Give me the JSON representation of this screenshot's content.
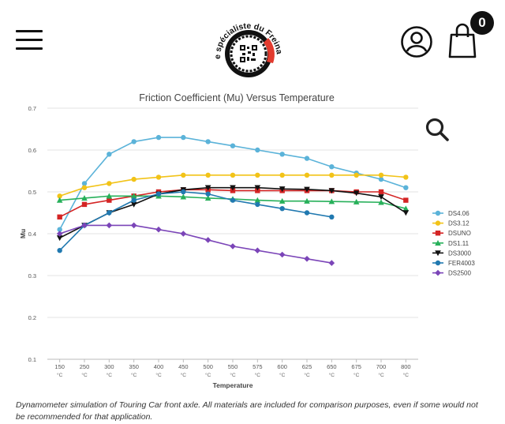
{
  "header": {
    "logo_text": "Le spécialiste du Freinage",
    "cart_count": "0",
    "menu_icon": "hamburger-icon",
    "account_icon": "user-icon",
    "cart_icon": "shopping-bag-icon",
    "zoom_icon": "search-icon"
  },
  "colors": {
    "accent": "#111111",
    "logo_red": "#e23b2e"
  },
  "chart_data": {
    "type": "line",
    "title": "Friction Coefficient (Mu) Versus Temperature",
    "xlabel": "Temperature",
    "ylabel": "Mu",
    "ylim": [
      0.1,
      0.7
    ],
    "yticks": [
      "0.1",
      "0.2",
      "0.3",
      "0.4",
      "0.5",
      "0.6",
      "0.7"
    ],
    "grid": true,
    "legend": "right",
    "categories": [
      "150",
      "250",
      "300",
      "350",
      "400",
      "450",
      "500",
      "550",
      "575",
      "600",
      "625",
      "650",
      "675",
      "700",
      "800"
    ],
    "unit": "°C",
    "series": [
      {
        "name": "DS4.06",
        "color": "#5bb3d9",
        "marker": "circle",
        "values": [
          0.41,
          0.52,
          0.59,
          0.62,
          0.63,
          0.63,
          0.62,
          0.61,
          0.6,
          0.59,
          0.58,
          0.56,
          0.545,
          0.53,
          0.51
        ]
      },
      {
        "name": "DS3.12",
        "color": "#f2c318",
        "marker": "circle",
        "values": [
          0.49,
          0.51,
          0.52,
          0.53,
          0.535,
          0.54,
          0.54,
          0.54,
          0.54,
          0.54,
          0.54,
          0.54,
          0.54,
          0.54,
          0.535
        ]
      },
      {
        "name": "DSUNO",
        "color": "#d42424",
        "marker": "square",
        "values": [
          0.44,
          0.47,
          0.48,
          0.49,
          0.5,
          0.505,
          0.505,
          0.503,
          0.503,
          0.503,
          0.503,
          0.503,
          0.5,
          0.5,
          0.48
        ]
      },
      {
        "name": "DS1.11",
        "color": "#27b05a",
        "marker": "triangle",
        "values": [
          0.48,
          0.485,
          0.49,
          0.49,
          0.49,
          0.488,
          0.485,
          0.483,
          0.48,
          0.478,
          0.478,
          0.477,
          0.476,
          0.475,
          0.46
        ]
      },
      {
        "name": "DS3000",
        "color": "#111111",
        "marker": "triangle-down",
        "values": [
          0.39,
          0.42,
          0.45,
          0.47,
          0.495,
          0.505,
          0.51,
          0.51,
          0.51,
          0.507,
          0.506,
          0.503,
          0.497,
          0.488,
          0.45
        ]
      },
      {
        "name": "FER4003",
        "color": "#2179b0",
        "marker": "circle",
        "values": [
          0.36,
          0.42,
          0.45,
          0.48,
          0.495,
          0.5,
          0.495,
          0.48,
          0.47,
          0.46,
          0.45,
          0.44,
          null,
          null,
          null
        ]
      },
      {
        "name": "DS2500",
        "color": "#7b45b8",
        "marker": "diamond",
        "values": [
          0.4,
          0.42,
          0.42,
          0.42,
          0.41,
          0.4,
          0.385,
          0.37,
          0.36,
          0.35,
          0.34,
          0.33,
          null,
          null,
          null
        ]
      }
    ]
  },
  "caption": "Dynamometer simulation of Touring Car front axle. All materials are included for comparison purposes, even if some would not be recommended for that application."
}
